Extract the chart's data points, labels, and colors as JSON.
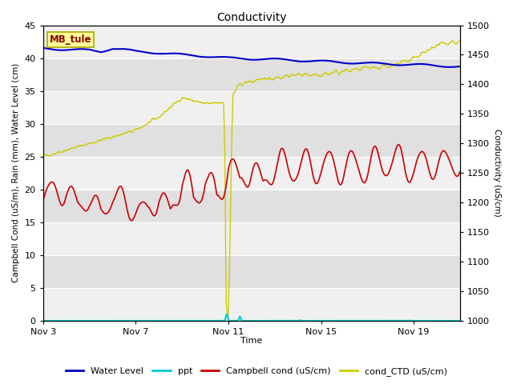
{
  "title": "Conductivity",
  "xlabel": "Time",
  "ylabel_left": "Campbell Cond (uS/m), Rain (mm), Water Level (cm)",
  "ylabel_right": "Conductivity (uS/cm)",
  "ylim_left": [
    0,
    45
  ],
  "ylim_right": [
    1000,
    1500
  ],
  "yticks_left": [
    0,
    5,
    10,
    15,
    20,
    25,
    30,
    35,
    40,
    45
  ],
  "yticks_right": [
    1000,
    1050,
    1100,
    1150,
    1200,
    1250,
    1300,
    1350,
    1400,
    1450,
    1500
  ],
  "background_color": "#ffffff",
  "plot_bg_light": "#f0f0f0",
  "plot_bg_dark": "#e0e0e0",
  "site_label": "MB_tule",
  "site_label_color": "#8B0000",
  "site_label_bg": "#ffff99",
  "colors": {
    "water_level": "#0000CD",
    "ppt": "#00CCCC",
    "campbell_cond": "#CC0000",
    "cond_CTD": "#CCCC00"
  },
  "legend_labels": [
    "Water Level",
    "ppt",
    "Campbell cond (uS/cm)",
    "cond_CTD (uS/cm)"
  ],
  "xtick_labels": [
    "Nov 3",
    "Nov 7",
    "Nov 11",
    "Nov 15",
    "Nov 19"
  ],
  "xtick_positions": [
    3,
    7,
    11,
    15,
    19
  ],
  "xlim": [
    3,
    21
  ]
}
